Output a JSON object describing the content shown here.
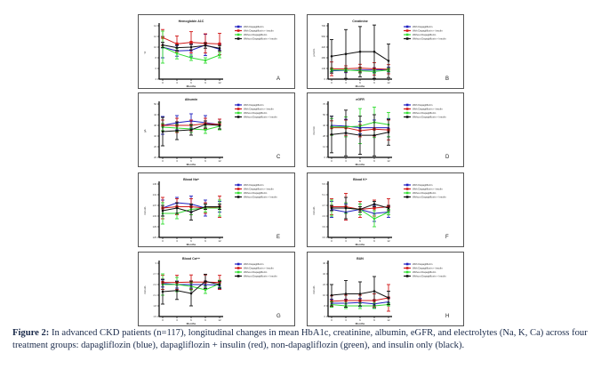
{
  "caption": {
    "label": "Figure 2:",
    "text": " In advanced CKD patients (n=117), longitudinal changes in mean HbA1c, creatinine, albumin, eGFR, and electrolytes (Na, K, Ca) across four treatment groups: dapagliflozin (blue), dapagliflozin + insulin (red), non-dapagliflozin (green), and insulin only (black)."
  },
  "legend": [
    "With Dapagliflozin",
    "With Dapagliflozin + Insulin",
    "Without Dapagliflozin",
    "Without Dapagliflozin + Insulin"
  ],
  "colors": [
    "#2020c0",
    "#d01818",
    "#33dd33",
    "#111111"
  ],
  "chart_data": [
    {
      "type": "line",
      "panel": "A",
      "title": "Hemoglobin A1C",
      "xlabel": "Months",
      "ylabel": "%",
      "x": [
        0,
        3,
        6,
        9,
        12
      ],
      "ylim": [
        4,
        14
      ],
      "series": [
        {
          "name": "With Dapagliflozin",
          "values": [
            10,
            9.3,
            9.4,
            10.4,
            9.6
          ],
          "err": [
            2,
            1,
            1.2,
            2,
            1
          ]
        },
        {
          "name": "With Dapagliflozin + Insulin",
          "values": [
            11.8,
            10.6,
            10.9,
            10.7,
            10.6
          ],
          "err": [
            1.5,
            1.5,
            2,
            1.8,
            2
          ]
        },
        {
          "name": "Without Dapagliflozin",
          "values": [
            10,
            8.8,
            8,
            7.5,
            8.5
          ],
          "err": [
            3,
            1,
            0.5,
            0.5,
            0.5
          ]
        },
        {
          "name": "Without Dapagliflozin + Insulin",
          "values": [
            10.4,
            9.9,
            10,
            10.3,
            9.8
          ],
          "err": [
            0.5,
            0.5,
            0.5,
            0.5,
            0.5
          ]
        }
      ]
    },
    {
      "type": "line",
      "panel": "B",
      "title": "Creatinine",
      "xlabel": "Months",
      "ylabel": "μmol/L",
      "x": [
        0,
        3,
        6,
        9,
        12
      ],
      "ylim": [
        0,
        700
      ],
      "series": [
        {
          "name": "With Dapagliflozin",
          "values": [
            110,
            115,
            120,
            120,
            125
          ],
          "err": [
            30,
            30,
            30,
            30,
            30
          ]
        },
        {
          "name": "With Dapagliflozin + Insulin",
          "values": [
            135,
            135,
            145,
            135,
            130
          ],
          "err": [
            90,
            40,
            50,
            80,
            60
          ]
        },
        {
          "name": "Without Dapagliflozin",
          "values": [
            120,
            120,
            110,
            100,
            120
          ],
          "err": [
            20,
            20,
            30,
            20,
            20
          ]
        },
        {
          "name": "Without Dapagliflozin + Insulin",
          "values": [
            300,
            330,
            360,
            360,
            240
          ],
          "err": [
            220,
            320,
            330,
            350,
            220
          ]
        }
      ]
    },
    {
      "type": "line",
      "panel": "C",
      "title": "Albumin",
      "xlabel": "Months",
      "ylabel": "g/L",
      "x": [
        0,
        3,
        6,
        9,
        12
      ],
      "ylim": [
        20,
        50
      ],
      "series": [
        {
          "name": "With Dapagliflozin",
          "values": [
            38,
            39.5,
            40.5,
            39.5,
            38.5
          ],
          "err": [
            5,
            4,
            4,
            4,
            3
          ]
        },
        {
          "name": "With Dapagliflozin + Insulin",
          "values": [
            38,
            38,
            38,
            39,
            38.5
          ],
          "err": [
            3,
            4,
            3,
            3,
            3
          ]
        },
        {
          "name": "Without Dapagliflozin",
          "values": [
            37,
            36.5,
            36,
            35.5,
            37.5
          ],
          "err": [
            2,
            2,
            2,
            2,
            2
          ]
        },
        {
          "name": "Without Dapagliflozin + Insulin",
          "values": [
            34.5,
            35,
            35.5,
            38.5,
            38
          ],
          "err": [
            8,
            5,
            3,
            2,
            2
          ]
        }
      ]
    },
    {
      "type": "line",
      "panel": "D",
      "title": "eGFR",
      "xlabel": "Months",
      "ylabel": "mL/min",
      "x": [
        0,
        3,
        6,
        9,
        12
      ],
      "ylim": [
        0,
        70
      ],
      "series": [
        {
          "name": "With Dapagliflozin",
          "values": [
            42,
            41,
            39,
            39,
            39
          ],
          "err": [
            12,
            9,
            8,
            10,
            12
          ]
        },
        {
          "name": "With Dapagliflozin + Insulin",
          "values": [
            39,
            39,
            35,
            37,
            36
          ],
          "err": [
            9,
            10,
            8,
            9,
            13
          ]
        },
        {
          "name": "Without Dapagliflozin",
          "values": [
            40,
            40,
            41,
            46,
            43
          ],
          "err": [
            11,
            13,
            23,
            20,
            16
          ]
        },
        {
          "name": "Without Dapagliflozin + Insulin",
          "values": [
            30,
            32,
            29,
            29,
            33
          ],
          "err": [
            24,
            30,
            25,
            27,
            17
          ]
        }
      ]
    },
    {
      "type": "line",
      "panel": "E",
      "title": "Blood Na+",
      "xlabel": "Months",
      "ylabel": "mmol/L",
      "x": [
        0,
        3,
        6,
        9,
        12
      ],
      "ylim": [
        125,
        145
      ],
      "series": [
        {
          "name": "With Dapagliflozin",
          "values": [
            136,
            138,
            137.5,
            136,
            136.5
          ],
          "err": [
            3,
            2,
            3,
            3,
            2
          ]
        },
        {
          "name": "With Dapagliflozin + Insulin",
          "values": [
            136,
            136.5,
            136.5,
            136,
            136.5
          ],
          "err": [
            4,
            3,
            3,
            2,
            4
          ]
        },
        {
          "name": "Without Dapagliflozin",
          "values": [
            134,
            134,
            135.5,
            136,
            136
          ],
          "err": [
            4,
            2,
            2,
            1.5,
            3
          ]
        },
        {
          "name": "Without Dapagliflozin + Insulin",
          "values": [
            135,
            136,
            134.5,
            136.5,
            136.5
          ],
          "err": [
            2,
            2,
            3,
            1,
            1
          ]
        }
      ]
    },
    {
      "type": "line",
      "panel": "F",
      "title": "Blood K+",
      "xlabel": "Months",
      "ylabel": "mmol/L",
      "x": [
        0,
        3,
        6,
        9,
        12
      ],
      "ylim": [
        3.5,
        5.5
      ],
      "series": [
        {
          "name": "With Dapagliflozin",
          "values": [
            4.55,
            4.45,
            4.55,
            4.4,
            4.45
          ],
          "err": [
            0.3,
            0.3,
            0.2,
            0.3,
            0.2
          ]
        },
        {
          "name": "With Dapagliflozin + Insulin",
          "values": [
            4.65,
            4.65,
            4.55,
            4.6,
            4.65
          ],
          "err": [
            0.3,
            0.5,
            0.3,
            0.3,
            0.3
          ]
        },
        {
          "name": "Without Dapagliflozin",
          "values": [
            4.6,
            4.6,
            4.55,
            4.2,
            4.45
          ],
          "err": [
            0.3,
            0.2,
            0.2,
            0.3,
            0.1
          ]
        },
        {
          "name": "Without Dapagliflozin + Insulin",
          "values": [
            4.6,
            4.6,
            4.55,
            4.75,
            4.6
          ],
          "err": [
            0.1,
            0.4,
            0.1,
            0.1,
            0.1
          ]
        }
      ]
    },
    {
      "type": "line",
      "panel": "G",
      "title": "Blood Ca++",
      "xlabel": "Months",
      "ylabel": "mmol/L",
      "x": [
        0,
        3,
        6,
        9,
        12
      ],
      "ylim": [
        1.5,
        3.0
      ],
      "series": [
        {
          "name": "With Dapagliflozin",
          "values": [
            2.43,
            2.4,
            2.4,
            2.4,
            2.38
          ],
          "err": [
            0.1,
            0.1,
            0.1,
            0.1,
            0.1
          ]
        },
        {
          "name": "With Dapagliflozin + Insulin",
          "values": [
            2.46,
            2.46,
            2.47,
            2.47,
            2.46
          ],
          "err": [
            0.2,
            0.2,
            0.2,
            0.2,
            0.2
          ]
        },
        {
          "name": "Without Dapagliflozin",
          "values": [
            2.4,
            2.4,
            2.35,
            2.25,
            2.42
          ],
          "err": [
            0.3,
            0.2,
            0.1,
            0.1,
            0.1
          ]
        },
        {
          "name": "Without Dapagliflozin + Insulin",
          "values": [
            2.2,
            2.23,
            2.15,
            2.49,
            2.4
          ],
          "err": [
            0.35,
            0.25,
            0.35,
            0.2,
            0.1
          ]
        }
      ]
    },
    {
      "type": "line",
      "panel": "H",
      "title": "BUN",
      "xlabel": "Months",
      "ylabel": "mmol/L",
      "x": [
        0,
        3,
        6,
        9,
        12
      ],
      "ylim": [
        0,
        40
      ],
      "series": [
        {
          "name": "With Dapagliflozin",
          "values": [
            10,
            10,
            10.5,
            9.5,
            11
          ],
          "err": [
            3,
            3,
            3,
            3,
            3
          ]
        },
        {
          "name": "With Dapagliflozin + Insulin",
          "values": [
            11.5,
            12,
            12,
            12,
            14
          ],
          "err": [
            4,
            4,
            4,
            5,
            10
          ]
        },
        {
          "name": "Without Dapagliflozin",
          "values": [
            9,
            8,
            8,
            8,
            9
          ],
          "err": [
            2,
            2,
            2,
            2,
            1
          ]
        },
        {
          "name": "Without Dapagliflozin + Insulin",
          "values": [
            16,
            17,
            17,
            19,
            14
          ],
          "err": [
            8,
            10,
            9,
            11,
            5
          ]
        }
      ]
    }
  ]
}
